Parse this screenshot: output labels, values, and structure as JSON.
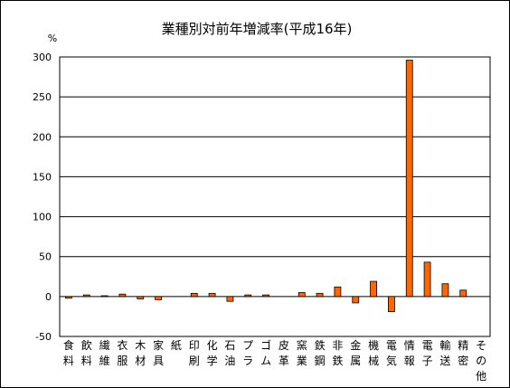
{
  "chart_data": {
    "type": "bar",
    "title": "業種別対前年増減率(平成16年)",
    "ylabel": "%",
    "ylim": [
      -50,
      300
    ],
    "yticks": [
      300,
      250,
      200,
      150,
      100,
      50,
      0,
      -50
    ],
    "grid": true,
    "categories": [
      [
        "食",
        "料"
      ],
      [
        "飲",
        "料"
      ],
      [
        "繊",
        "維"
      ],
      [
        "衣",
        "服"
      ],
      [
        "木",
        "材"
      ],
      [
        "家",
        "具"
      ],
      [
        "紙"
      ],
      [
        "印",
        "刷"
      ],
      [
        "化",
        "学"
      ],
      [
        "石",
        "油"
      ],
      [
        "プ",
        "ラ"
      ],
      [
        "ゴ",
        "ム"
      ],
      [
        "皮",
        "革"
      ],
      [
        "窯",
        "業"
      ],
      [
        "鉄",
        "鋼"
      ],
      [
        "非",
        "鉄"
      ],
      [
        "金",
        "属"
      ],
      [
        "機",
        "械"
      ],
      [
        "電",
        "気"
      ],
      [
        "情",
        "報"
      ],
      [
        "電",
        "子"
      ],
      [
        "輸",
        "送"
      ],
      [
        "精",
        "密"
      ],
      [
        "そ",
        "の",
        "他"
      ]
    ],
    "values": [
      -2,
      2,
      1,
      3,
      -3,
      -4,
      0,
      4,
      4,
      -6,
      2,
      2,
      0,
      5,
      4,
      12,
      -8,
      19,
      -19,
      296,
      43,
      16,
      8,
      0
    ],
    "bar_color": "#ff6600"
  }
}
